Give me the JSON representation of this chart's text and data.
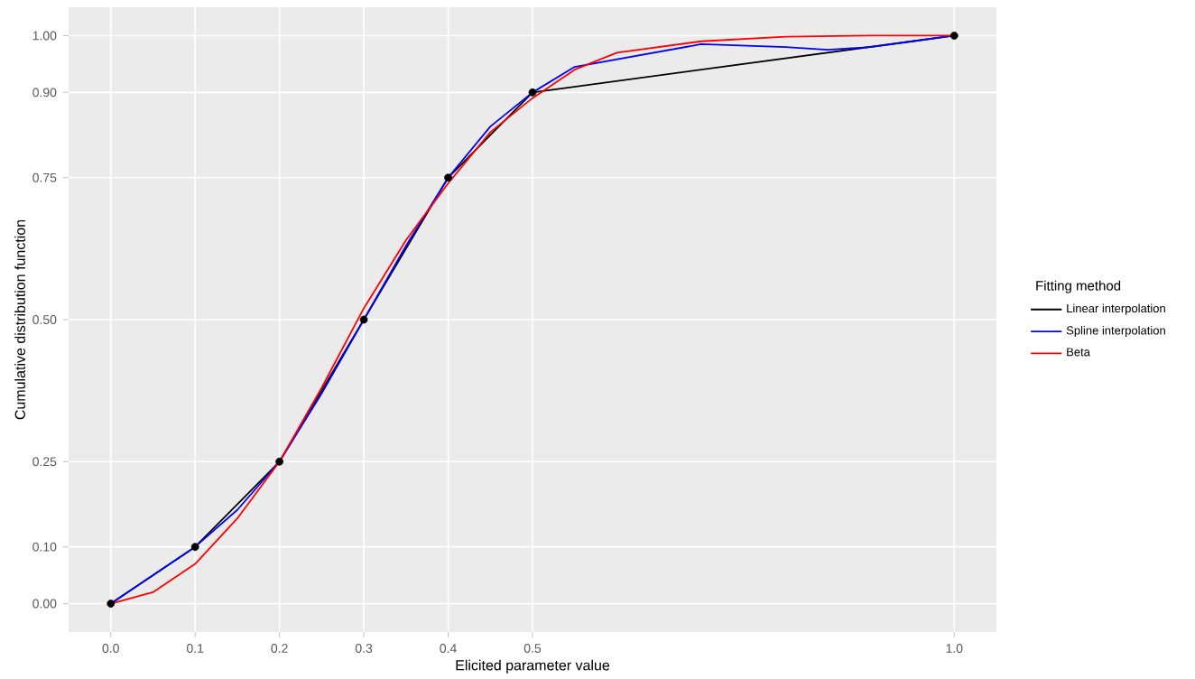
{
  "chart_data": {
    "type": "line",
    "xlabel": "Elicited parameter value",
    "ylabel": "Cumulative distribution function",
    "legend_title": "Fitting method",
    "xlim": [
      -0.05,
      1.05
    ],
    "ylim": [
      -0.05,
      1.05
    ],
    "xticks": [
      {
        "value": 0,
        "label": "0.0"
      },
      0.1,
      0.2,
      0.3,
      0.4,
      0.5,
      {
        "value": 1,
        "label": "1.0"
      }
    ],
    "yticks": [
      {
        "value": 0,
        "label": "0.00"
      },
      {
        "value": 0.1,
        "label": "0.10"
      },
      0.25,
      {
        "value": 0.5,
        "label": "0.50"
      },
      0.75,
      {
        "value": 0.9,
        "label": "0.90"
      },
      {
        "value": 1,
        "label": "1.00"
      }
    ],
    "grid": true,
    "legend": "right",
    "line_style": "solid",
    "marker": "none",
    "series": [
      {
        "name": "Linear interpolation",
        "color": "#000000",
        "x": [
          0,
          0.1,
          0.2,
          0.3,
          0.4,
          0.5,
          1
        ],
        "values": [
          0,
          0.1,
          0.25,
          0.5,
          0.75,
          0.9,
          1
        ]
      },
      {
        "name": "Spline interpolation",
        "color": "#0000ff",
        "x": [
          0,
          0.05,
          0.1,
          0.15,
          0.2,
          0.25,
          0.3,
          0.35,
          0.4,
          0.45,
          0.5,
          0.55,
          0.7,
          0.8,
          0.85,
          0.9,
          1
        ],
        "values": [
          0,
          0.05,
          0.1,
          0.165,
          0.25,
          0.37,
          0.5,
          0.63,
          0.75,
          0.84,
          0.9,
          0.945,
          0.985,
          0.98,
          0.975,
          0.98,
          1
        ]
      },
      {
        "name": "Beta",
        "color": "#ff0000",
        "x": [
          0,
          0.05,
          0.1,
          0.15,
          0.2,
          0.25,
          0.3,
          0.35,
          0.4,
          0.45,
          0.5,
          0.55,
          0.6,
          0.7,
          0.8,
          0.9,
          1
        ],
        "values": [
          0,
          0.02,
          0.07,
          0.15,
          0.25,
          0.38,
          0.52,
          0.64,
          0.74,
          0.83,
          0.89,
          0.94,
          0.97,
          0.99,
          0.998,
          1,
          1
        ]
      },
      {
        "type": "scatter",
        "marker": "circle",
        "color": "#000000",
        "x": [
          0,
          0.1,
          0.2,
          0.3,
          0.4,
          0.5,
          1
        ],
        "values": [
          0,
          0.1,
          0.25,
          0.5,
          0.75,
          0.9,
          1
        ]
      }
    ]
  }
}
